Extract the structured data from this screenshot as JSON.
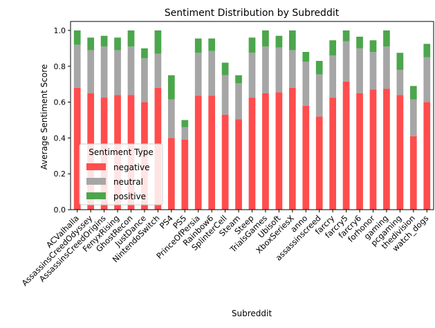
{
  "chart_data": {
    "type": "bar",
    "stacked": true,
    "title": "Sentiment Distribution by Subreddit",
    "xlabel": "Subreddit",
    "ylabel": "Average Sentiment Score",
    "ylim": [
      0,
      1.05
    ],
    "yticks": [
      "0.0",
      "0.2",
      "0.4",
      "0.6",
      "0.8",
      "1.0"
    ],
    "grid": false,
    "legend": {
      "title": "Sentiment Type",
      "placement": "lower-left"
    },
    "categories": [
      "ACValhalla",
      "AssassinsCreedOdyssey",
      "AssassinsCreedOrigins",
      "FenyxRising",
      "GhostRecon",
      "JustDance",
      "NintendoSwitch",
      "PS4",
      "PS5",
      "PrinceOfPersia",
      "Rainbow6",
      "SplinterCell",
      "Steam",
      "Steep",
      "TrialsGames",
      "Ubisoft",
      "XboxSeriesX",
      "anno",
      "assassinscreed",
      "farcry",
      "farcry5",
      "farcry6",
      "forhonor",
      "gaming",
      "pcgaming",
      "thedivision",
      "watch_dogs"
    ],
    "series": [
      {
        "name": "negative",
        "color": "#ff4d4d",
        "values": [
          0.68,
          0.65,
          0.625,
          0.64,
          0.64,
          0.6,
          0.68,
          0.4,
          0.39,
          0.635,
          0.635,
          0.53,
          0.505,
          0.625,
          0.65,
          0.655,
          0.68,
          0.58,
          0.52,
          0.625,
          0.715,
          0.65,
          0.67,
          0.675,
          0.64,
          0.41,
          0.6
        ]
      },
      {
        "name": "neutral",
        "color": "#a6a6a6",
        "values": [
          0.24,
          0.24,
          0.285,
          0.25,
          0.27,
          0.245,
          0.19,
          0.215,
          0.07,
          0.24,
          0.25,
          0.22,
          0.2,
          0.25,
          0.26,
          0.25,
          0.21,
          0.245,
          0.235,
          0.235,
          0.225,
          0.25,
          0.21,
          0.235,
          0.14,
          0.205,
          0.25
        ]
      },
      {
        "name": "positive",
        "color": "#4ca64c",
        "values": [
          0.08,
          0.07,
          0.06,
          0.07,
          0.09,
          0.055,
          0.13,
          0.135,
          0.04,
          0.08,
          0.07,
          0.07,
          0.045,
          0.085,
          0.09,
          0.065,
          0.11,
          0.055,
          0.075,
          0.085,
          0.06,
          0.065,
          0.065,
          0.09,
          0.095,
          0.075,
          0.075
        ]
      }
    ]
  }
}
